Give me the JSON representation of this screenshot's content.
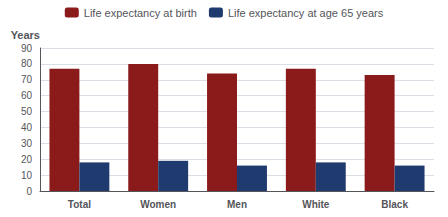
{
  "chart_data": {
    "type": "bar",
    "categories": [
      "Total",
      "Women",
      "Men",
      "White",
      "Black"
    ],
    "series": [
      {
        "name": "Life expectancy at birth",
        "color": "#8B1A1A",
        "values": [
          77.0,
          80.0,
          74.0,
          77.0,
          73.0
        ]
      },
      {
        "name": "Life expectancy at age 65 years",
        "color": "#1F3A6E",
        "values": [
          18.0,
          19.0,
          16.0,
          18.0,
          16.0
        ]
      }
    ],
    "ylabel": "Years",
    "ylim": [
      0,
      90
    ],
    "yticks": [
      0,
      10,
      20,
      30,
      40,
      50,
      60,
      70,
      80,
      90
    ],
    "grid": true,
    "legend": "top"
  }
}
